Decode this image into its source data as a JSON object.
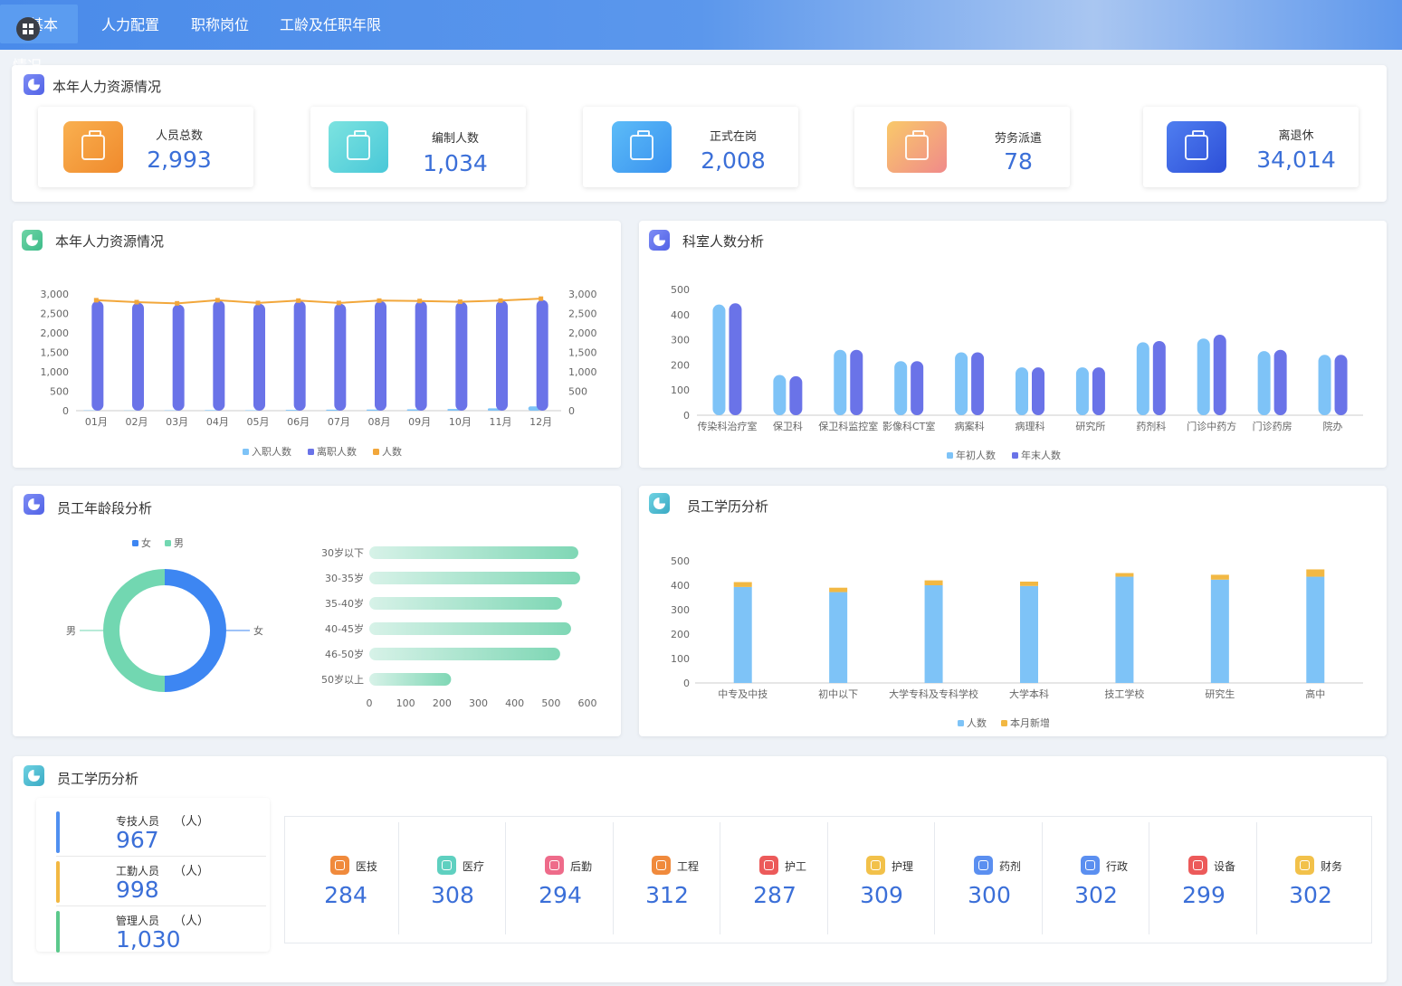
{
  "nav": {
    "tabs": [
      {
        "label": "基本情况",
        "active": true
      },
      {
        "label": "人力配置"
      },
      {
        "label": "职称岗位"
      },
      {
        "label": "工龄及任职年限"
      }
    ]
  },
  "summary": {
    "title": "本年人力资源情况",
    "cards": [
      {
        "label": "人员总数",
        "value": "2,993",
        "icon": "bottle-icon",
        "color": "#f39a3a"
      },
      {
        "label": "编制人数",
        "value": "1,034",
        "icon": "building-icon",
        "color": "#5fd6da"
      },
      {
        "label": "正式在岗",
        "value": "2,008",
        "icon": "tag-clock-icon",
        "color": "#45a6f5"
      },
      {
        "label": "劳务派遣",
        "value": "78",
        "icon": "sprout-jar-icon",
        "color": "#f4a47e"
      },
      {
        "label": "离退休",
        "value": "34,014",
        "icon": "yen-icon",
        "color": "#3b64df"
      }
    ]
  },
  "panels": {
    "monthly_title": "本年人力资源情况",
    "dept_title": "科室人数分析",
    "age_title": "员工年龄段分析",
    "edu_title": "员工学历分析",
    "staff_title": "员工学历分析"
  },
  "chart_data": [
    {
      "type": "bar",
      "categories": [
        "01月",
        "02月",
        "03月",
        "04月",
        "05月",
        "06月",
        "07月",
        "08月",
        "09月",
        "10月",
        "11月",
        "12月"
      ],
      "series": [
        {
          "name": "入职人数",
          "chart": "bar",
          "color": "#7ec3f7",
          "values": [
            8,
            6,
            10,
            15,
            12,
            20,
            25,
            30,
            35,
            45,
            60,
            110
          ]
        },
        {
          "name": "离职人数",
          "chart": "bar",
          "color": "#6a73e8",
          "values": [
            2820,
            2780,
            2730,
            2830,
            2750,
            2820,
            2750,
            2820,
            2820,
            2800,
            2830,
            2850
          ]
        },
        {
          "name": "人数",
          "chart": "line",
          "color": "#f2a73b",
          "axis": "right",
          "values": [
            2840,
            2790,
            2760,
            2840,
            2770,
            2830,
            2770,
            2830,
            2820,
            2800,
            2830,
            2880
          ]
        }
      ],
      "ylim": [
        0,
        3000
      ],
      "yticks": [
        "0",
        "500",
        "1,000",
        "1,500",
        "2,000",
        "2,500",
        "3,000"
      ],
      "grid": false,
      "legend": "bottom"
    },
    {
      "type": "bar",
      "categories": [
        "传染科治疗室",
        "保卫科",
        "保卫科监控室",
        "影像科CT室",
        "病案科",
        "病理科",
        "研究所",
        "药剂科",
        "门诊中药方",
        "门诊药房",
        "院办"
      ],
      "series": [
        {
          "name": "年初人数",
          "color": "#7ec3f7",
          "values": [
            440,
            160,
            260,
            215,
            250,
            190,
            190,
            290,
            305,
            255,
            240
          ]
        },
        {
          "name": "年末人数",
          "color": "#6a73e8",
          "values": [
            445,
            155,
            260,
            215,
            250,
            190,
            190,
            295,
            320,
            260,
            240
          ]
        }
      ],
      "ylim": [
        0,
        500
      ],
      "yticks": [
        "0",
        "100",
        "200",
        "300",
        "400",
        "500"
      ],
      "grid": false,
      "legend": "bottom"
    },
    {
      "type": "pie",
      "series": [
        {
          "name": "女",
          "color": "#3d86f2",
          "value": 50
        },
        {
          "name": "男",
          "color": "#72d7b1",
          "value": 50
        }
      ],
      "legend": "top"
    },
    {
      "type": "bar",
      "orientation": "horizontal",
      "categories": [
        "30岁以下",
        "30-35岁",
        "35-40岁",
        "40-45岁",
        "46-50岁",
        "50岁以上"
      ],
      "values": [
        575,
        580,
        530,
        555,
        525,
        225
      ],
      "xlim": [
        0,
        600
      ],
      "xticks": [
        "0",
        "100",
        "200",
        "300",
        "400",
        "500",
        "600"
      ],
      "color": "#7fd7b5"
    },
    {
      "type": "bar",
      "stacked": true,
      "categories": [
        "中专及中技",
        "初中以下",
        "大学专科及专科学校",
        "大学本科",
        "技工学校",
        "研究生",
        "高中"
      ],
      "series": [
        {
          "name": "人数",
          "color": "#7ec3f7",
          "values": [
            393,
            372,
            400,
            397,
            435,
            423,
            435
          ]
        },
        {
          "name": "本月新增",
          "color": "#f2b843",
          "values": [
            20,
            18,
            20,
            18,
            15,
            20,
            30
          ]
        }
      ],
      "ylim": [
        0,
        500
      ],
      "yticks": [
        "0",
        "100",
        "200",
        "300",
        "400",
        "500"
      ],
      "grid": false,
      "legend": "bottom"
    }
  ],
  "staff": {
    "items": [
      {
        "name": "专技人员",
        "unit": "（人）",
        "value": "967",
        "color": "#4f8ff0"
      },
      {
        "name": "工勤人员",
        "unit": "（人）",
        "value": "998",
        "color": "#f2b843"
      },
      {
        "name": "管理人员",
        "unit": "（人）",
        "value": "1,030",
        "color": "#5cc98c"
      }
    ],
    "depts": [
      {
        "name": "医技",
        "value": "284",
        "color": "#f08a3c",
        "icon": "cloud-upload-icon"
      },
      {
        "name": "医疗",
        "value": "308",
        "color": "#5fd0c0",
        "icon": "cube-icon"
      },
      {
        "name": "后勤",
        "value": "294",
        "color": "#ee6b8a",
        "icon": "apps-icon"
      },
      {
        "name": "工程",
        "value": "312",
        "color": "#f08a3c",
        "icon": "clock-icon"
      },
      {
        "name": "护工",
        "value": "287",
        "color": "#ec5a5a",
        "icon": "heart-icon"
      },
      {
        "name": "护理",
        "value": "309",
        "color": "#f2c14a",
        "icon": "thumb-up-icon"
      },
      {
        "name": "药剂",
        "value": "300",
        "color": "#5b8ff0",
        "icon": "bag-icon"
      },
      {
        "name": "行政",
        "value": "302",
        "color": "#5b8ff0",
        "icon": "compass-icon"
      },
      {
        "name": "设备",
        "value": "299",
        "color": "#ec5a5a",
        "icon": "bell-icon"
      },
      {
        "name": "财务",
        "value": "302",
        "color": "#f2c14a",
        "icon": "coin-icon"
      }
    ]
  }
}
